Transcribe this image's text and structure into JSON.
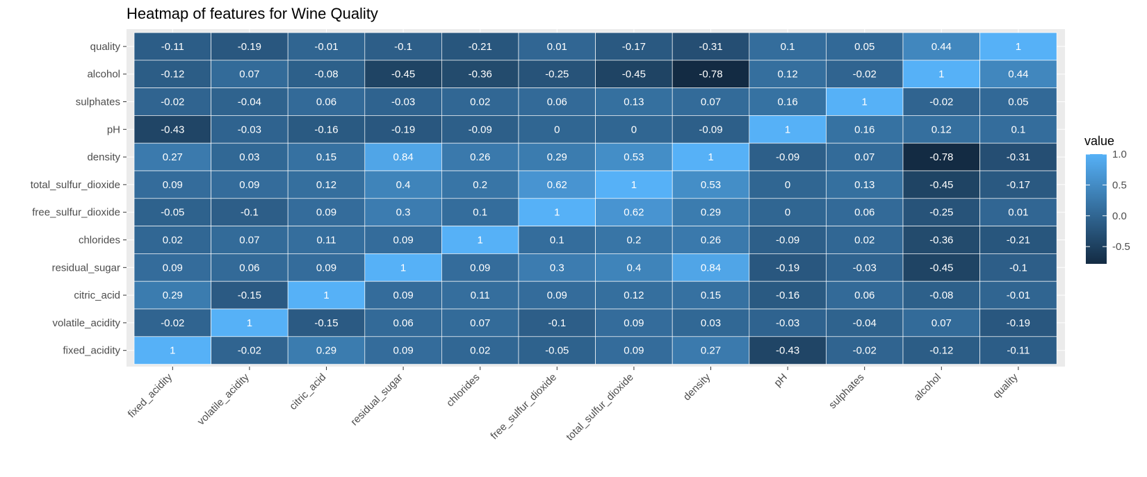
{
  "chart_data": {
    "type": "heatmap",
    "title": "Heatmap of features for Wine Quality",
    "xlabel": "",
    "ylabel": "",
    "x_categories": [
      "fixed_acidity",
      "volatile_acidity",
      "citric_acid",
      "residual_sugar",
      "chlorides",
      "free_sulfur_dioxide",
      "total_sulfur_dioxide",
      "density",
      "pH",
      "sulphates",
      "alcohol",
      "quality"
    ],
    "y_categories_top_to_bottom": [
      "quality",
      "alcohol",
      "sulphates",
      "pH",
      "density",
      "total_sulfur_dioxide",
      "free_sulfur_dioxide",
      "chlorides",
      "residual_sugar",
      "citric_acid",
      "volatile_acidity",
      "fixed_acidity"
    ],
    "values_top_to_bottom": [
      [
        -0.11,
        -0.19,
        -0.01,
        -0.1,
        -0.21,
        0.01,
        -0.17,
        -0.31,
        0.1,
        0.05,
        0.44,
        1
      ],
      [
        -0.12,
        0.07,
        -0.08,
        -0.45,
        -0.36,
        -0.25,
        -0.45,
        -0.78,
        0.12,
        -0.02,
        1,
        0.44
      ],
      [
        -0.02,
        -0.04,
        0.06,
        -0.03,
        0.02,
        0.06,
        0.13,
        0.07,
        0.16,
        1,
        -0.02,
        0.05
      ],
      [
        -0.43,
        -0.03,
        -0.16,
        -0.19,
        -0.09,
        0,
        0,
        -0.09,
        1,
        0.16,
        0.12,
        0.1
      ],
      [
        0.27,
        0.03,
        0.15,
        0.84,
        0.26,
        0.29,
        0.53,
        1,
        -0.09,
        0.07,
        -0.78,
        -0.31
      ],
      [
        0.09,
        0.09,
        0.12,
        0.4,
        0.2,
        0.62,
        1,
        0.53,
        0,
        0.13,
        -0.45,
        -0.17
      ],
      [
        -0.05,
        -0.1,
        0.09,
        0.3,
        0.1,
        1,
        0.62,
        0.29,
        0,
        0.06,
        -0.25,
        0.01
      ],
      [
        0.02,
        0.07,
        0.11,
        0.09,
        1,
        0.1,
        0.2,
        0.26,
        -0.09,
        0.02,
        -0.36,
        -0.21
      ],
      [
        0.09,
        0.06,
        0.09,
        1,
        0.09,
        0.3,
        0.4,
        0.84,
        -0.19,
        -0.03,
        -0.45,
        -0.1
      ],
      [
        0.29,
        -0.15,
        1,
        0.09,
        0.11,
        0.09,
        0.12,
        0.15,
        -0.16,
        0.06,
        -0.08,
        -0.01
      ],
      [
        -0.02,
        1,
        -0.15,
        0.06,
        0.07,
        -0.1,
        0.09,
        0.03,
        -0.03,
        -0.04,
        0.07,
        -0.19
      ],
      [
        1,
        -0.02,
        0.29,
        0.09,
        0.02,
        -0.05,
        0.09,
        0.27,
        -0.43,
        -0.02,
        -0.12,
        -0.11
      ]
    ],
    "value_range": [
      -0.78,
      1
    ],
    "legend": {
      "title": "value",
      "ticks": [
        1.0,
        0.5,
        0.0,
        -0.5
      ],
      "tick_labels": [
        "1.0",
        "0.5",
        "0.0",
        "-0.5"
      ],
      "position": "right",
      "low_color": "#132b43",
      "high_color": "#56b1f7"
    },
    "panel_background": "#ebebeb",
    "grid": true,
    "cell_border_color": "#ffffff",
    "label_color": "#ffffff"
  }
}
